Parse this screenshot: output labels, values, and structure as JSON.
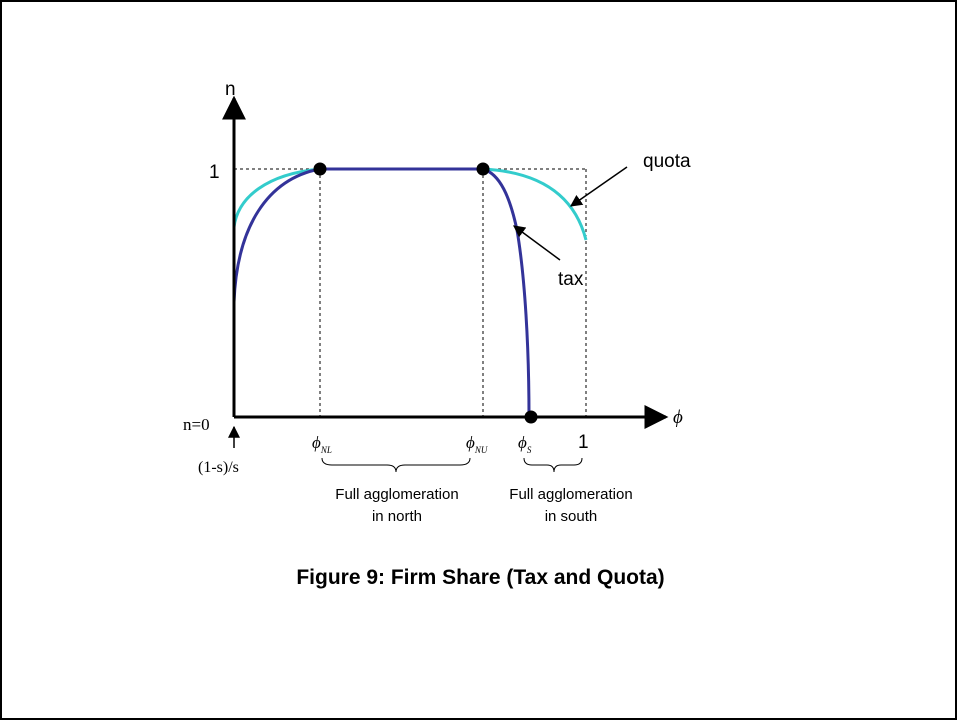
{
  "caption": "Figure 9: Firm Share (Tax and Quota)",
  "axes": {
    "y_label": "n",
    "x_label": "ϕ",
    "y_top_tick": "1",
    "y_origin_label": "n=0",
    "x_origin_label": "(1-s)/s",
    "x_end_tick": "1"
  },
  "points": {
    "phi_NL": {
      "symbol": "ϕ",
      "sub": "NL"
    },
    "phi_NU": {
      "symbol": "ϕ",
      "sub": "NU"
    },
    "phi_S": {
      "symbol": "ϕ",
      "sub": "S"
    }
  },
  "annotations": {
    "quota": "quota",
    "tax": "tax"
  },
  "regions": {
    "north": [
      "Full agglomeration",
      "in north"
    ],
    "south": [
      "Full agglomeration",
      "in south"
    ]
  },
  "colors": {
    "tax": "#333399",
    "quota": "#33cccc",
    "axis": "#000000"
  }
}
